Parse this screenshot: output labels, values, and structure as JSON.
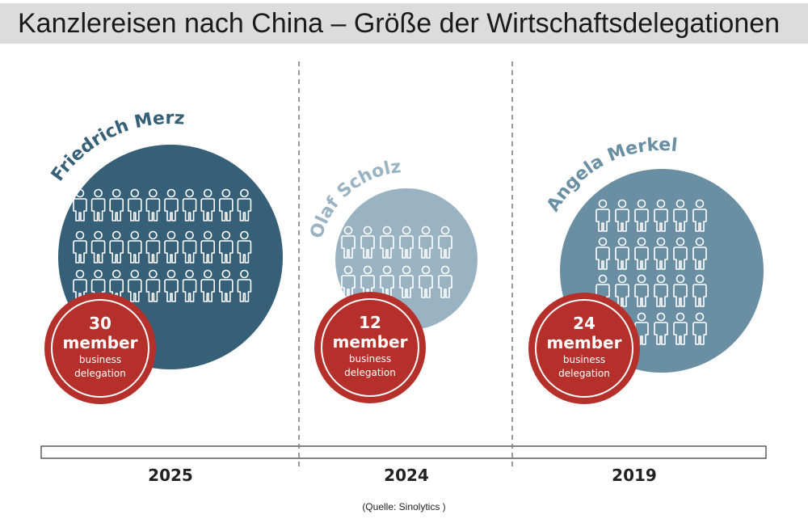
{
  "title": "Kanzlereisen nach China – Größe der Wirtschaftsdelegationen",
  "source": "(Quelle: Sinolytics )",
  "colors": {
    "merz": "#365f78",
    "scholz": "#9ab3c2",
    "merkel": "#6a8fa3",
    "badge": "#b5302a",
    "figure_outline": "#ffffff"
  },
  "chart_data": {
    "type": "bubble",
    "xlabel": "",
    "ylabel": "",
    "categories": [
      "2025",
      "2024",
      "2019"
    ],
    "series": [
      {
        "name": "Friedrich Merz",
        "year": "2025",
        "value": 30,
        "count_text": "30",
        "unit": "member",
        "sub1": "business",
        "sub2": "delegation"
      },
      {
        "name": "Olaf Scholz",
        "year": "2024",
        "value": 12,
        "count_text": "12",
        "unit": "member",
        "sub1": "business",
        "sub2": "delegation"
      },
      {
        "name": "Angela Merkel",
        "year": "2019",
        "value": 24,
        "count_text": "24",
        "unit": "member",
        "sub1": "business",
        "sub2": "delegation"
      }
    ]
  }
}
